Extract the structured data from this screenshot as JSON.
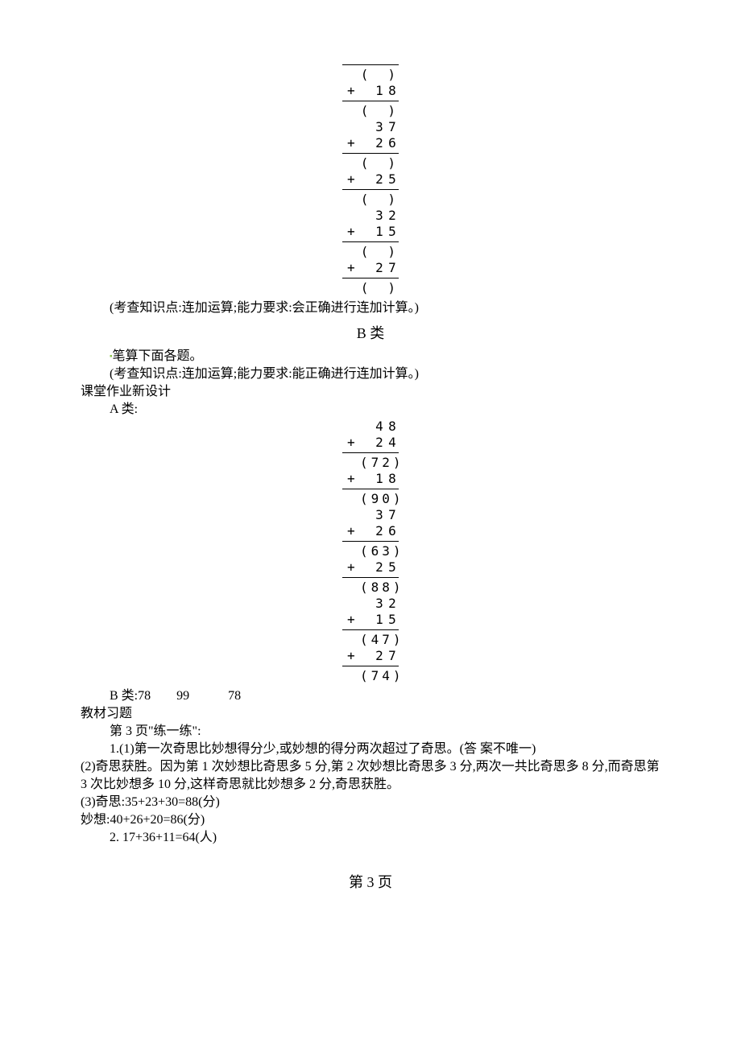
{
  "calc1": {
    "rows": [
      {
        "type": "hr-top"
      },
      {
        "type": "paren",
        "text": "(　)"
      },
      {
        "type": "op",
        "sign": "+",
        "d1": "1",
        "d2": "8"
      },
      {
        "type": "hr"
      },
      {
        "type": "paren",
        "text": "(　)"
      },
      {
        "type": "num",
        "d1": "3",
        "d2": "7"
      },
      {
        "type": "op",
        "sign": "+",
        "d1": "2",
        "d2": "6"
      },
      {
        "type": "hr"
      },
      {
        "type": "paren",
        "text": "(　)"
      },
      {
        "type": "op",
        "sign": "+",
        "d1": "2",
        "d2": "5"
      },
      {
        "type": "hr"
      },
      {
        "type": "paren",
        "text": "(　)"
      },
      {
        "type": "num",
        "d1": "3",
        "d2": "2"
      },
      {
        "type": "op",
        "sign": "+",
        "d1": "1",
        "d2": "5"
      },
      {
        "type": "hr"
      },
      {
        "type": "paren",
        "text": "(　)"
      },
      {
        "type": "op",
        "sign": "+",
        "d1": "2",
        "d2": "7"
      },
      {
        "type": "hr"
      },
      {
        "type": "paren",
        "text": "(　)"
      }
    ]
  },
  "note_a": "(考查知识点:连加运算;能力要求:会正确进行连加计算。)",
  "heading_b": "B 类",
  "b_line1": "笔算下面各题。",
  "b_line2": "(考查知识点:连加运算;能力要求:能正确进行连加计算。)",
  "section_new": "课堂作业新设计",
  "a_label": "A 类:",
  "calc2": {
    "rows": [
      {
        "type": "num",
        "d1": "4",
        "d2": "8"
      },
      {
        "type": "op",
        "sign": "+",
        "d1": "2",
        "d2": "4"
      },
      {
        "type": "hr"
      },
      {
        "type": "paren",
        "text": "(72)"
      },
      {
        "type": "op",
        "sign": "+",
        "d1": "1",
        "d2": "8"
      },
      {
        "type": "hr"
      },
      {
        "type": "paren",
        "text": "(90)"
      },
      {
        "type": "num",
        "d1": "3",
        "d2": "7"
      },
      {
        "type": "op",
        "sign": "+",
        "d1": "2",
        "d2": "6"
      },
      {
        "type": "hr"
      },
      {
        "type": "paren",
        "text": "(63)"
      },
      {
        "type": "op",
        "sign": "+",
        "d1": "2",
        "d2": "5"
      },
      {
        "type": "hr"
      },
      {
        "type": "paren",
        "text": "(88)"
      },
      {
        "type": "num",
        "d1": "3",
        "d2": "2"
      },
      {
        "type": "op",
        "sign": "+",
        "d1": "1",
        "d2": "5"
      },
      {
        "type": "hr"
      },
      {
        "type": "paren",
        "text": "(47)"
      },
      {
        "type": "op",
        "sign": "+",
        "d1": "2",
        "d2": "7"
      },
      {
        "type": "hr"
      },
      {
        "type": "paren",
        "text": "(74)"
      }
    ]
  },
  "b_result": "B 类:78　　99　　　78",
  "section_text": "教材习题",
  "text_p3": "第 3 页\"练一练\":",
  "ans_1_1": "1.(1)第一次奇思比妙想得分少,或妙想的得分两次超过了奇思。(答 案不唯一)",
  "ans_1_2": "(2)奇思获胜。因为第 1 次妙想比奇思多 5 分,第 2 次妙想比奇思多 3 分,两次一共比奇思多 8 分,而奇思第 3 次比妙想多 10 分,这样奇思就比妙想多 2 分,奇思获胜。",
  "ans_1_3": "(3)奇思:35+23+30=88(分)",
  "ans_1_4": "妙想:40+26+20=86(分)",
  "ans_2": "2. 17+36+11=64(人)",
  "footer": "第 3 页",
  "colors": {
    "text": "#000000",
    "bg": "#ffffff",
    "accent_green": "#8bc34a"
  },
  "typography": {
    "body_fontsize": 16,
    "heading_fontsize": 18,
    "font_family": "SimSun"
  }
}
